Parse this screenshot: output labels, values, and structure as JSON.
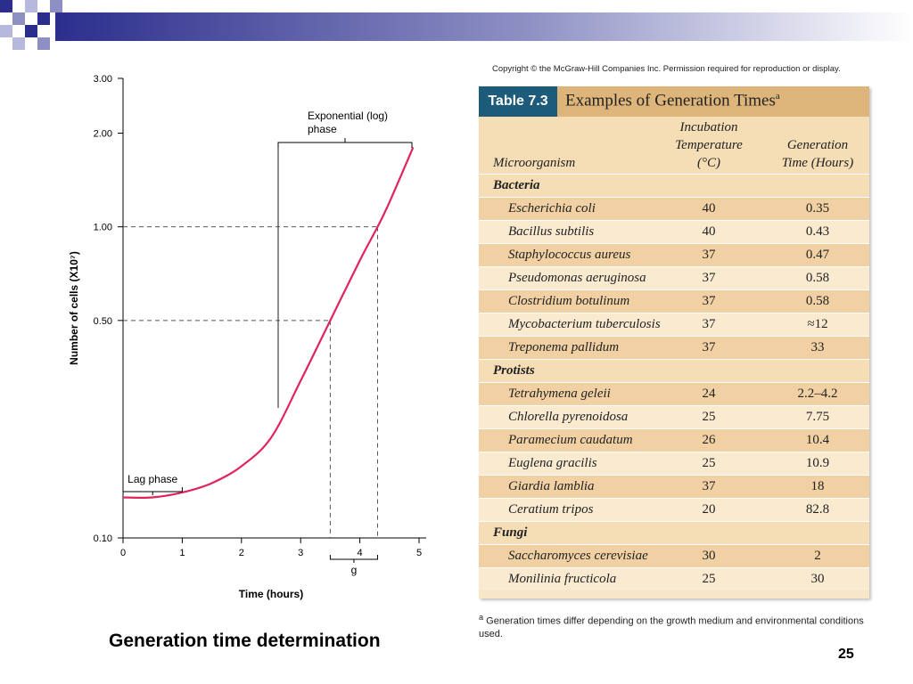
{
  "slide": {
    "caption": "Generation time determination",
    "page_number": "25",
    "copyright": "Copyright © the McGraw-Hill Companies Inc. Permission required for reproduction or display."
  },
  "colors": {
    "curve": "#e0245e",
    "table_badge": "#1c5b7a",
    "table_header": "#ddb47a",
    "row_dark": "#f1d1a3",
    "row_light": "#f9ead0"
  },
  "chart_data": {
    "type": "line",
    "xlabel": "Time (hours)",
    "ylabel": "Number of cells (X10⁷)",
    "y_scale": "log",
    "xlim": [
      0,
      5
    ],
    "ylim": [
      0.1,
      3.0
    ],
    "x_ticks": [
      "0",
      "1",
      "2",
      "3",
      "4",
      "5"
    ],
    "y_ticks": [
      "0.10",
      "0.50",
      "1.00",
      "2.00",
      "3.00"
    ],
    "x": [
      0,
      0.5,
      1.0,
      1.5,
      2.0,
      2.5,
      3.0,
      3.5,
      4.0,
      4.3,
      4.5,
      4.9
    ],
    "y": [
      0.135,
      0.135,
      0.14,
      0.15,
      0.17,
      0.21,
      0.32,
      0.5,
      0.78,
      1.0,
      1.2,
      1.8
    ],
    "grid": false,
    "annotations": {
      "lag_phase": "Lag phase",
      "exp_phase_line1": "Exponential (log)",
      "exp_phase_line2": "phase",
      "generation": "g"
    },
    "dashed_guides": [
      {
        "y": 0.5,
        "x": 3.5
      },
      {
        "y": 1.0,
        "x": 4.3
      }
    ]
  },
  "table": {
    "badge": "Table 7.3",
    "title": "Examples of Generation Times",
    "title_sup": "a",
    "col_micro": "Microorganism",
    "col_temp_1": "Incubation",
    "col_temp_2": "Temperature",
    "col_temp_3": "(°C)",
    "col_gen_1": "Generation",
    "col_gen_2": "Time (Hours)",
    "rows": [
      {
        "cat": "Bacteria"
      },
      {
        "name": "Escherichia coli",
        "temp": "40",
        "gen": "0.35"
      },
      {
        "name": "Bacillus subtilis",
        "temp": "40",
        "gen": "0.43"
      },
      {
        "name": "Staphylococcus aureus",
        "temp": "37",
        "gen": "0.47"
      },
      {
        "name": "Pseudomonas aeruginosa",
        "temp": "37",
        "gen": "0.58"
      },
      {
        "name": "Clostridium botulinum",
        "temp": "37",
        "gen": "0.58"
      },
      {
        "name": "Mycobacterium tuberculosis",
        "temp": "37",
        "gen": "≈12"
      },
      {
        "name": "Treponema pallidum",
        "temp": "37",
        "gen": "33"
      },
      {
        "cat": "Protists"
      },
      {
        "name": "Tetrahymena geleii",
        "temp": "24",
        "gen": "2.2–4.2"
      },
      {
        "name": "Chlorella pyrenoidosa",
        "temp": "25",
        "gen": "7.75"
      },
      {
        "name": "Paramecium caudatum",
        "temp": "26",
        "gen": "10.4"
      },
      {
        "name": "Euglena gracilis",
        "temp": "25",
        "gen": "10.9"
      },
      {
        "name": "Giardia lamblia",
        "temp": "37",
        "gen": "18"
      },
      {
        "name": "Ceratium tripos",
        "temp": "20",
        "gen": "82.8"
      },
      {
        "cat": "Fungi"
      },
      {
        "name": "Saccharomyces cerevisiae",
        "temp": "30",
        "gen": "2"
      },
      {
        "name": "Monilinia fructicola",
        "temp": "25",
        "gen": "30"
      }
    ],
    "footnote_sup": "a",
    "footnote": " Generation times differ depending on the growth medium and environmental conditions used."
  }
}
